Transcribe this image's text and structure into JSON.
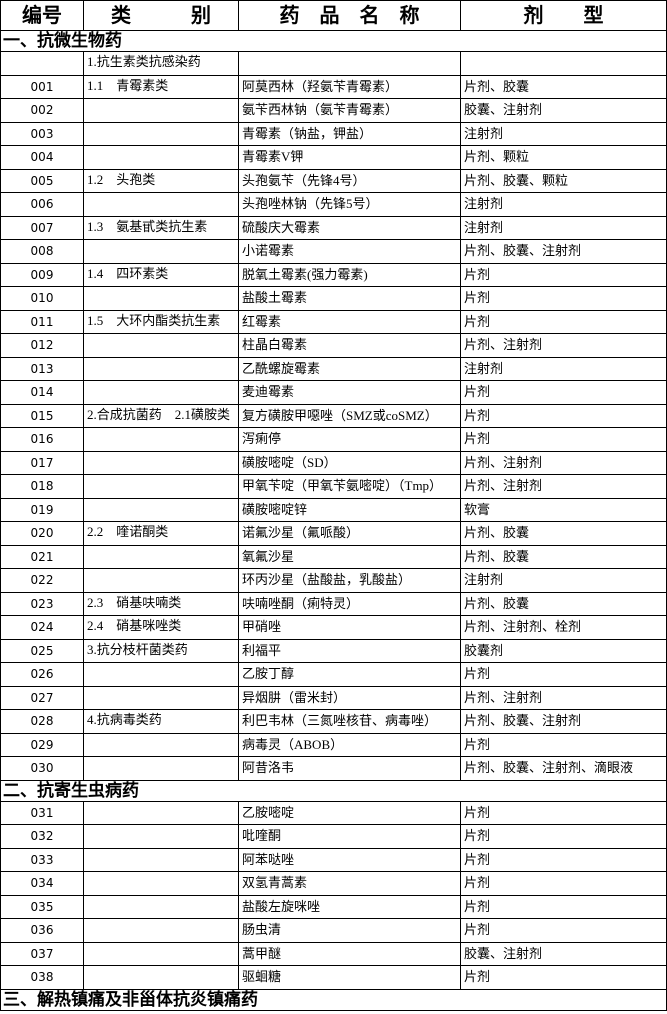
{
  "header": [
    "编号",
    "类　　　别",
    "药　品　名　称",
    "剂　　型"
  ],
  "sections": [
    {
      "title": "一、抗微生物药",
      "rows": [
        [
          null,
          "1.抗生素类抗感染药",
          null,
          null
        ],
        [
          "001",
          "1.1　青霉素类",
          "阿莫西林（羟氨苄青霉素）",
          "片剂、胶囊"
        ],
        [
          "002",
          null,
          "氨苄西林钠（氨苄青霉素）",
          "胶囊、注射剂"
        ],
        [
          "003",
          null,
          "青霉素（钠盐，钾盐）",
          "注射剂"
        ],
        [
          "004",
          null,
          "青霉素V钾",
          "片剂、颗粒"
        ],
        [
          "005",
          "1.2　头孢类",
          "头孢氨苄（先锋4号）",
          "片剂、胶囊、颗粒"
        ],
        [
          "006",
          null,
          "头孢唑林钠（先锋5号）",
          "注射剂"
        ],
        [
          "007",
          "1.3　氨基甙类抗生素",
          "硫酸庆大霉素",
          "注射剂"
        ],
        [
          "008",
          null,
          "小诺霉素",
          "片剂、胶囊、注射剂"
        ],
        [
          "009",
          "1.4　四环素类",
          "脱氧土霉素(强力霉素)",
          "片剂"
        ],
        [
          "010",
          null,
          "盐酸土霉素",
          "片剂"
        ],
        [
          "011",
          "1.5　大环内酯类抗生素",
          "红霉素",
          "片剂"
        ],
        [
          "012",
          null,
          "柱晶白霉素",
          "片剂、注射剂"
        ],
        [
          "013",
          null,
          "乙酰螺旋霉素",
          "注射剂"
        ],
        [
          "014",
          null,
          "麦迪霉素",
          "片剂"
        ],
        [
          "015",
          "2.合成抗菌药　2.1磺胺类",
          "复方磺胺甲噁唑（SMZ或coSMZ）",
          "片剂"
        ],
        [
          "016",
          null,
          "泻痢停",
          "片剂"
        ],
        [
          "017",
          null,
          "磺胺嘧啶（SD）",
          "片剂、注射剂"
        ],
        [
          "018",
          null,
          "甲氧苄啶（甲氧苄氨嘧啶）（Tmp）",
          "片剂、注射剂"
        ],
        [
          "019",
          null,
          "磺胺嘧啶锌",
          "软膏"
        ],
        [
          "020",
          "2.2　喹诺酮类",
          "诺氟沙星（氟哌酸）",
          "片剂、胶囊"
        ],
        [
          "021",
          null,
          "氧氟沙星",
          "片剂、胶囊"
        ],
        [
          "022",
          null,
          "环丙沙星（盐酸盐，乳酸盐）",
          "注射剂"
        ],
        [
          "023",
          "2.3　硝基呋喃类",
          "呋喃唑酮（痢特灵）",
          "片剂、胶囊"
        ],
        [
          "024",
          "2.4　硝基咪唑类",
          "甲硝唑",
          "片剂、注射剂、栓剂"
        ],
        [
          "025",
          "3.抗分枝杆菌类药",
          "利福平",
          "胶囊剂"
        ],
        [
          "026",
          null,
          "乙胺丁醇",
          "片剂"
        ],
        [
          "027",
          null,
          "异烟肼（雷米封）",
          "片剂、注射剂"
        ],
        [
          "028",
          "4.抗病毒类药",
          "利巴韦林（三氮唑核苷、病毒唑）",
          "片剂、胶囊、注射剂"
        ],
        [
          "029",
          null,
          "病毒灵（ABOB）",
          "片剂"
        ],
        [
          "030",
          null,
          "阿昔洛韦",
          "片剂、胶囊、注射剂、滴眼液"
        ]
      ]
    },
    {
      "title": "二、抗寄生虫病药",
      "rows": [
        [
          "031",
          null,
          "乙胺嘧啶",
          "片剂"
        ],
        [
          "032",
          null,
          "吡喹酮",
          "片剂"
        ],
        [
          "033",
          null,
          "阿苯哒唑",
          "片剂"
        ],
        [
          "034",
          null,
          "双氢青蒿素",
          "片剂"
        ],
        [
          "035",
          null,
          "盐酸左旋咪唑",
          "片剂"
        ],
        [
          "036",
          null,
          "肠虫清",
          "片剂"
        ],
        [
          "037",
          null,
          "蒿甲醚",
          "胶囊、注射剂"
        ],
        [
          "038",
          null,
          "驱蛔糖",
          "片剂"
        ]
      ]
    },
    {
      "title": "三、解热镇痛及非甾体抗炎镇痛药",
      "rows": []
    }
  ]
}
